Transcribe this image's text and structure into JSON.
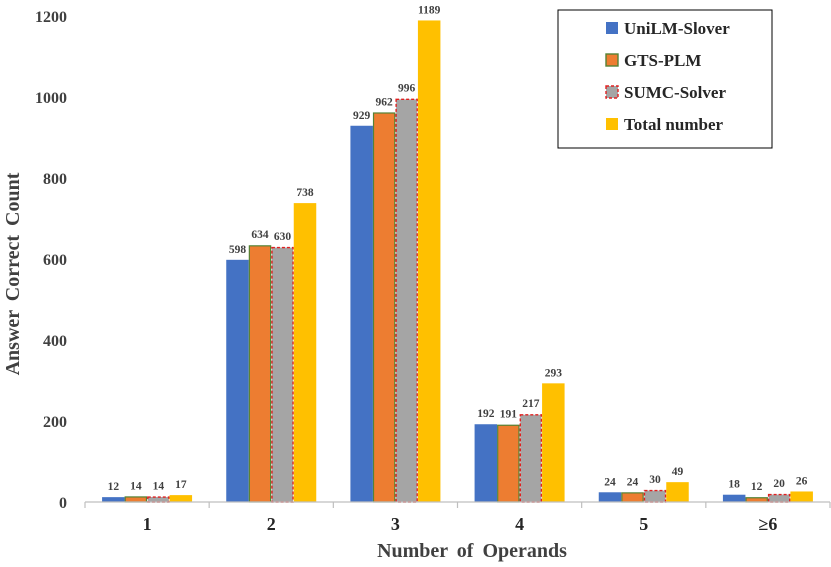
{
  "chart_data": {
    "type": "bar",
    "title": "",
    "xlabel": "Number  of  Operands",
    "ylabel": "Answer  Correct  Count",
    "ylim": [
      0,
      1200
    ],
    "yticks": [
      0,
      200,
      400,
      600,
      800,
      1000,
      1200
    ],
    "categories": [
      "1",
      "2",
      "3",
      "4",
      "5",
      "≥6"
    ],
    "legend_position": "top-right",
    "grid": false,
    "series": [
      {
        "name": "UniLM-Slover",
        "color": "#4472C4",
        "border": "#4472C4",
        "dashed": false,
        "values": [
          12,
          598,
          929,
          192,
          24,
          18
        ]
      },
      {
        "name": "GTS-PLM",
        "color": "#ED7D31",
        "border": "#548235",
        "dashed": false,
        "values": [
          14,
          634,
          962,
          191,
          24,
          12
        ]
      },
      {
        "name": "SUMC-Solver",
        "color": "#A5A5A5",
        "border": "#E02020",
        "dashed": true,
        "values": [
          14,
          630,
          996,
          217,
          30,
          20
        ]
      },
      {
        "name": "Total number",
        "color": "#FFC000",
        "border": "#FFC000",
        "dashed": false,
        "values": [
          17,
          738,
          1189,
          293,
          49,
          26
        ]
      }
    ]
  }
}
